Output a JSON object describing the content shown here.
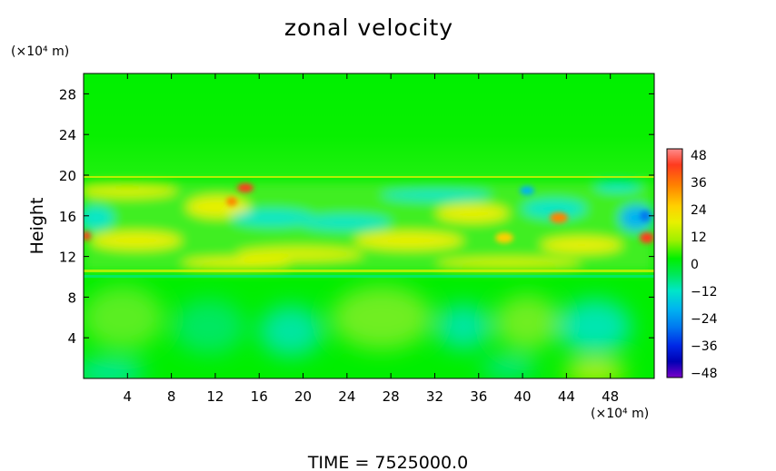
{
  "chart_data": {
    "type": "heatmap",
    "title": "zonal velocity",
    "ylabel": "Height",
    "yunit": "(×10⁴ m)",
    "xunit": "(×10⁴ m)",
    "footer": "TIME  =  7525000.0",
    "xlim": [
      0,
      52
    ],
    "ylim": [
      0,
      30
    ],
    "xticks": [
      "4",
      "8",
      "12",
      "16",
      "20",
      "24",
      "28",
      "32",
      "36",
      "40",
      "44",
      "48"
    ],
    "xtick_values": [
      4,
      8,
      12,
      16,
      20,
      24,
      28,
      32,
      36,
      40,
      44,
      48
    ],
    "yticks": [
      "4",
      "8",
      "12",
      "16",
      "20",
      "24",
      "28"
    ],
    "ytick_values": [
      4,
      8,
      12,
      16,
      20,
      24,
      28
    ],
    "colorbar": {
      "range": [
        -48,
        48
      ],
      "labels": [
        "48",
        "36",
        "24",
        "12",
        "0",
        "−12",
        "−24",
        "−36",
        "−48"
      ],
      "label_values": [
        48,
        36,
        24,
        12,
        0,
        -12,
        -24,
        -36,
        -48
      ],
      "colors": [
        "#ff8c8c",
        "#ff3a1e",
        "#ff8200",
        "#ffd000",
        "#e8f000",
        "#a0f000",
        "#00f000",
        "#00e85a",
        "#00e6c8",
        "#00b4f0",
        "#0078f0",
        "#0028e6",
        "#0000b4",
        "#7800c8"
      ]
    }
  }
}
